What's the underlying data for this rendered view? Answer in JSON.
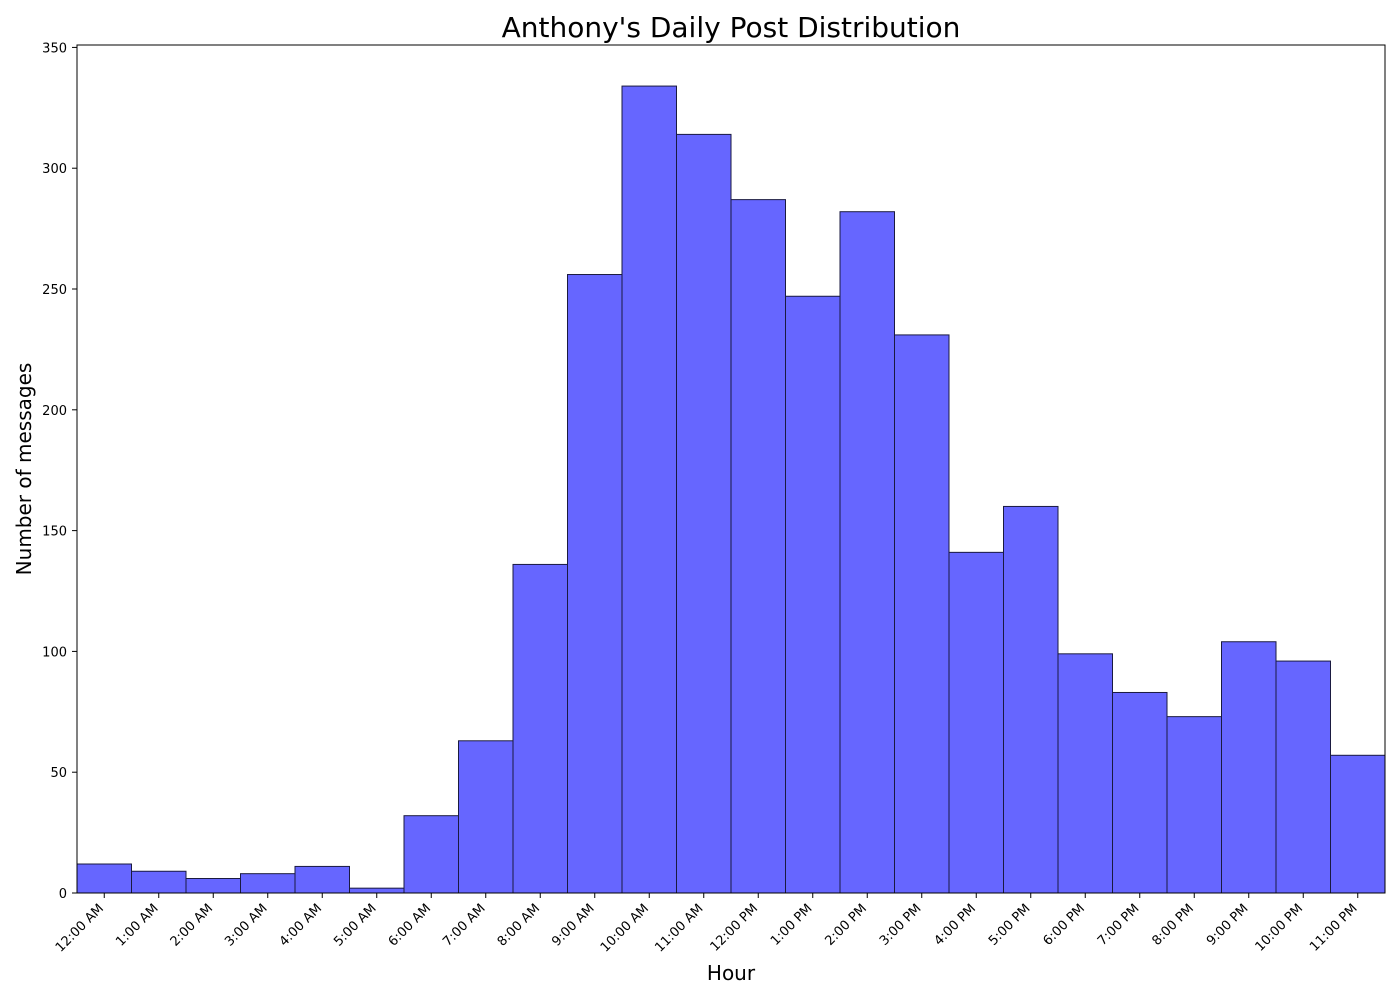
{
  "chart_data": {
    "type": "bar",
    "title": "Anthony's Daily Post Distribution",
    "xlabel": "Hour",
    "ylabel": "Number of messages",
    "categories": [
      "12:00 AM",
      "1:00 AM",
      "2:00 AM",
      "3:00 AM",
      "4:00 AM",
      "5:00 AM",
      "6:00 AM",
      "7:00 AM",
      "8:00 AM",
      "9:00 AM",
      "10:00 AM",
      "11:00 AM",
      "12:00 PM",
      "1:00 PM",
      "2:00 PM",
      "3:00 PM",
      "4:00 PM",
      "5:00 PM",
      "6:00 PM",
      "7:00 PM",
      "8:00 PM",
      "9:00 PM",
      "10:00 PM",
      "11:00 PM"
    ],
    "values": [
      12,
      9,
      6,
      8,
      11,
      2,
      32,
      63,
      136,
      256,
      334,
      314,
      287,
      247,
      282,
      231,
      141,
      160,
      99,
      83,
      73,
      104,
      96,
      57
    ],
    "ylim": [
      0,
      351
    ],
    "yticks": [
      0,
      50,
      100,
      150,
      200,
      250,
      300,
      350
    ],
    "grid": false,
    "bar_color": "#6666ff",
    "bar_edge_color": "#1a1a40"
  }
}
